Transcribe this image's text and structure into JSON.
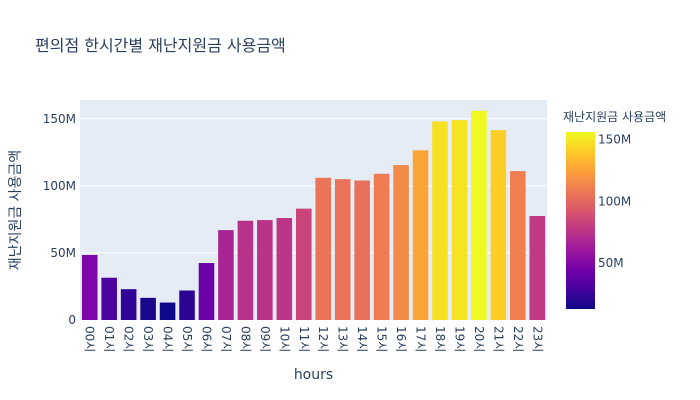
{
  "chart_data": {
    "type": "bar",
    "title": "편의점 한시간별 재난지원금 사용금액",
    "xlabel": "hours",
    "ylabel": "재난지원금 사용금액",
    "categories": [
      "00시",
      "01시",
      "02시",
      "03시",
      "04시",
      "05시",
      "06시",
      "07시",
      "08시",
      "09시",
      "10시",
      "11시",
      "12시",
      "13시",
      "14시",
      "15시",
      "16시",
      "17시",
      "18시",
      "19시",
      "20시",
      "21시",
      "22시",
      "23시"
    ],
    "values": [
      48.5,
      31.5,
      23.0,
      16.5,
      13.0,
      22.0,
      42.5,
      67.0,
      74.0,
      74.5,
      76.0,
      83.0,
      106.0,
      105.0,
      104.0,
      109.0,
      115.5,
      126.5,
      148.0,
      149.0,
      156.0,
      141.5,
      111.0,
      77.5
    ],
    "value_unit": "M",
    "ylim": [
      0,
      164
    ],
    "yticks": [
      {
        "v": 0,
        "label": "0"
      },
      {
        "v": 50,
        "label": "50M"
      },
      {
        "v": 100,
        "label": "100M"
      },
      {
        "v": 150,
        "label": "150M"
      }
    ],
    "grid": true,
    "colorbar": {
      "title": "재난지원금 사용금액",
      "range": [
        13,
        156
      ],
      "ticks": [
        {
          "v": 50,
          "label": "50M"
        },
        {
          "v": 100,
          "label": "100M"
        },
        {
          "v": 150,
          "label": "150M"
        }
      ],
      "colorscale": [
        "#0d0887",
        "#46039f",
        "#7201a8",
        "#9c179e",
        "#bd3786",
        "#d8576b",
        "#ed7953",
        "#fb9f3a",
        "#fdca26",
        "#f0f921"
      ]
    }
  }
}
